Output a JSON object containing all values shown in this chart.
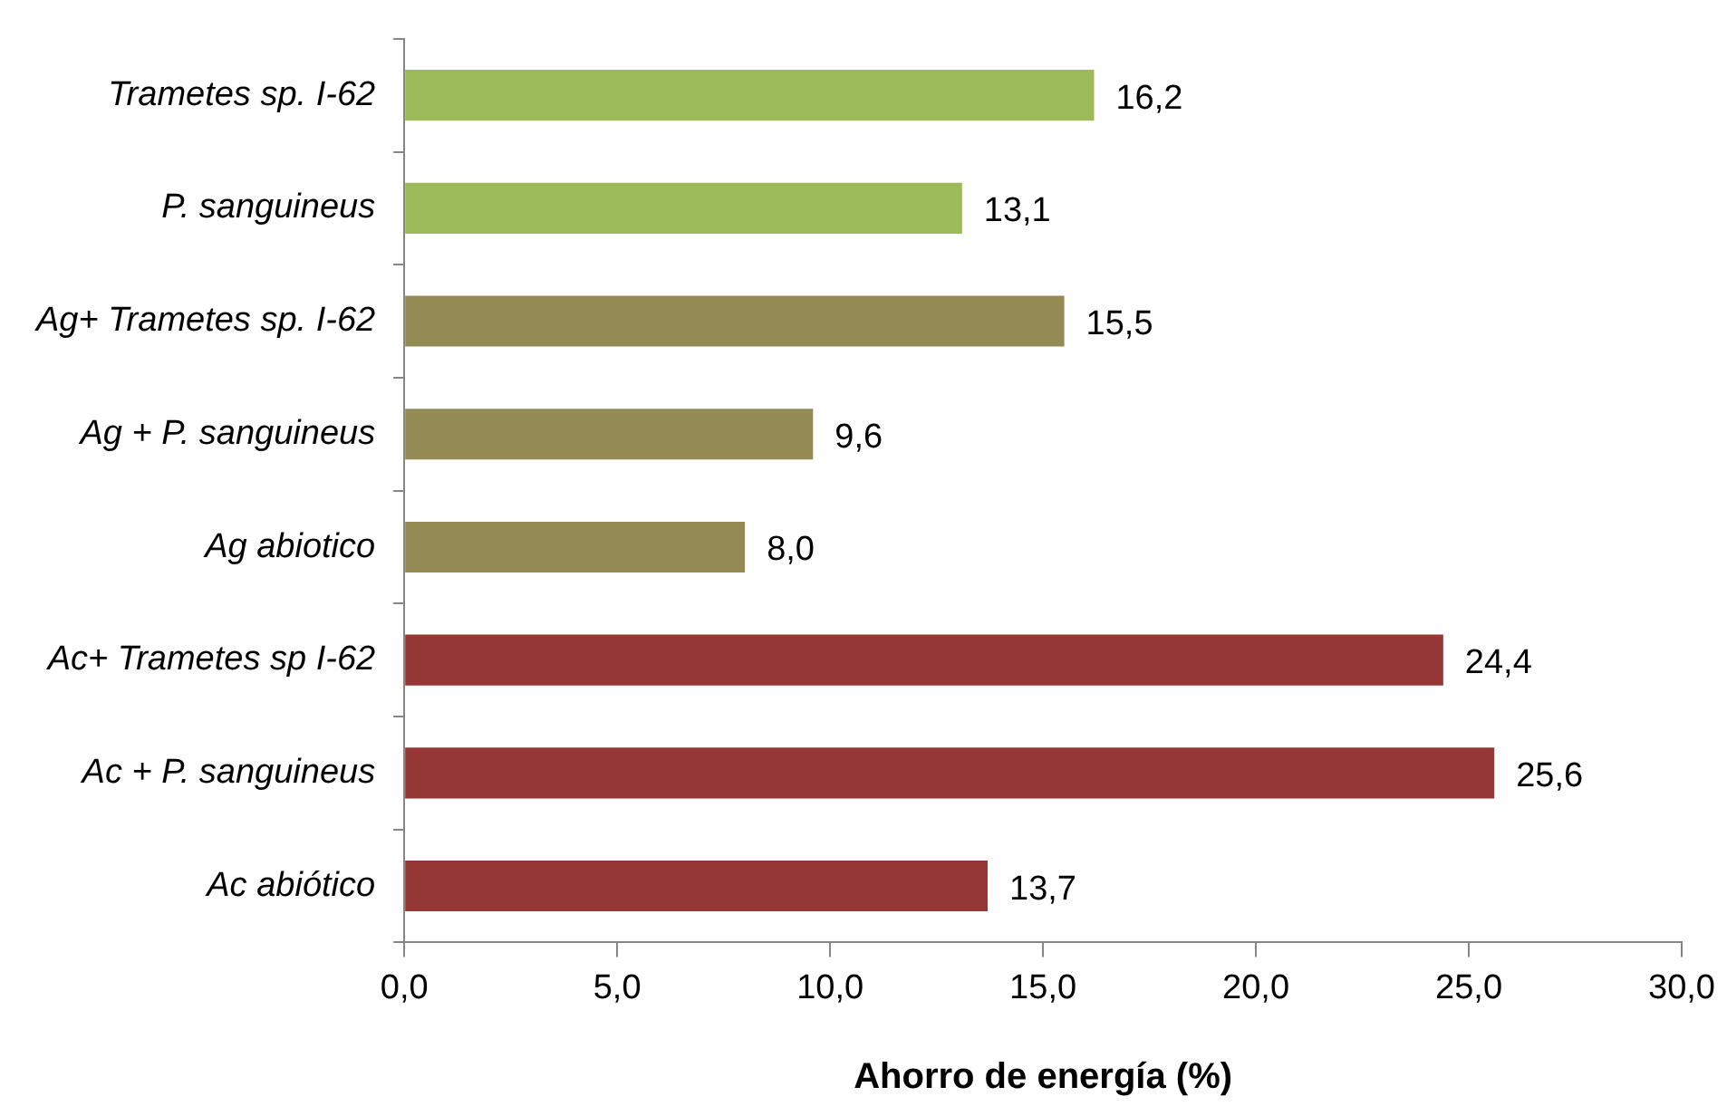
{
  "chart_data": {
    "type": "bar",
    "orientation": "horizontal",
    "xlabel": "Ahorro de energía (%)",
    "categories": [
      "Trametes sp. I-62",
      "P. sanguineus",
      "Ag+ Trametes sp. I-62",
      "Ag + P. sanguineus",
      "Ag abiotico",
      "Ac+ Trametes sp I-62",
      "Ac + P. sanguineus",
      "Ac abiótico"
    ],
    "values": [
      16.2,
      13.1,
      15.5,
      9.6,
      8.0,
      24.4,
      25.6,
      13.7
    ],
    "colors": [
      "#9bbb59",
      "#9bbb59",
      "#948a54",
      "#948a54",
      "#948a54",
      "#953735",
      "#953735",
      "#953735"
    ],
    "value_labels": [
      "16,2",
      "13,1",
      "15,5",
      "9,6",
      "8,0",
      "24,4",
      "25,6",
      "13,7"
    ],
    "xlim": [
      0,
      30
    ],
    "xticks": [
      {
        "value": 0,
        "label": "0,0"
      },
      {
        "value": 5,
        "label": "5,0"
      },
      {
        "value": 10,
        "label": "10,0"
      },
      {
        "value": 15,
        "label": "15,0"
      },
      {
        "value": 20,
        "label": "20,0"
      },
      {
        "value": 25,
        "label": "25,0"
      },
      {
        "value": 30,
        "label": "30,0"
      }
    ],
    "grid": false,
    "legend": false
  }
}
